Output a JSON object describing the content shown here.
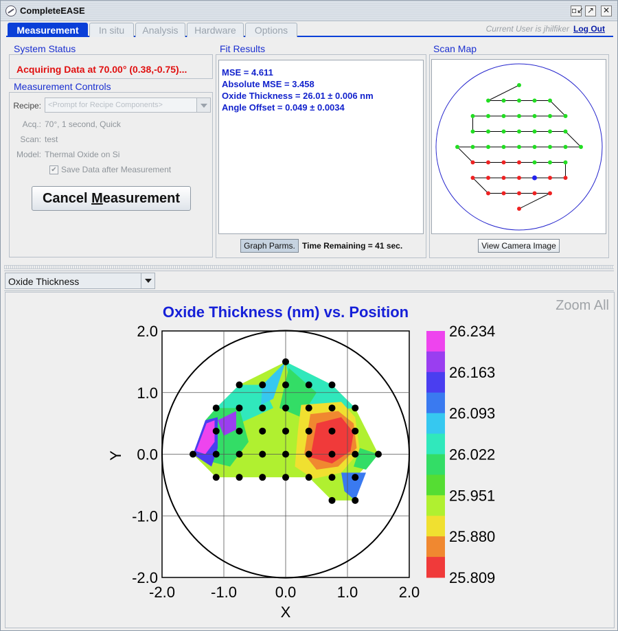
{
  "window": {
    "title": "CompleteEASE",
    "controls": [
      "▫↙",
      "↗",
      "✕"
    ]
  },
  "tabs": [
    {
      "label": "Measurement",
      "active": true
    },
    {
      "label": "In situ",
      "active": false
    },
    {
      "label": "Analysis",
      "active": false
    },
    {
      "label": "Hardware",
      "active": false
    },
    {
      "label": "Options",
      "active": false
    }
  ],
  "user": {
    "current": "Current User is jhilfiker",
    "logout": "Log Out"
  },
  "system_status": {
    "title": "System Status",
    "text": "Acquiring Data at 70.00° (0.38,-0.75)..."
  },
  "measurement_controls": {
    "title": "Measurement Controls",
    "recipe_label": "Recipe:",
    "recipe_value": "<Prompt for Recipe Components>",
    "acq_label": "Acq.:",
    "acq_value": "70°, 1 second, Quick",
    "scan_label": "Scan:",
    "scan_value": "test",
    "model_label": "Model:",
    "model_value": "Thermal Oxide on Si",
    "save_label": "Save Data after Measurement",
    "save_checked": true,
    "cancel_label_pre": "Cancel ",
    "cancel_label_mnemonic": "M",
    "cancel_label_post": "easurement"
  },
  "fit_results": {
    "title": "Fit Results",
    "lines": [
      "MSE = 4.611",
      "Absolute MSE = 3.458",
      "Oxide Thickness = 26.01 ± 0.006 nm",
      "Angle Offset = 0.049 ± 0.0034"
    ],
    "graph_parms": "Graph Parms.",
    "time_remaining": "Time Remaining = 41 sec."
  },
  "scan_map": {
    "title": "Scan Map",
    "camera_button": "View Camera Image"
  },
  "result_selector": {
    "value": "Oxide Thickness"
  },
  "zoom_all": "Zoom All",
  "chart_data": {
    "type": "heatmap",
    "title": "Oxide Thickness (nm) vs. Position",
    "xlabel": "X",
    "ylabel": "Y",
    "xlim": [
      -2.0,
      2.0
    ],
    "ylim": [
      -2.0,
      2.0
    ],
    "x_ticks": [
      "-2.0",
      "-1.0",
      "0.0",
      "1.0",
      "2.0"
    ],
    "y_ticks": [
      "2.0",
      "1.0",
      "0.0",
      "-1.0",
      "-2.0"
    ],
    "grid": true,
    "wafer_radius": 2.0,
    "colorbar": {
      "labels": [
        "26.234",
        "26.163",
        "26.093",
        "26.022",
        "25.951",
        "25.880",
        "25.809"
      ],
      "colors": [
        "#ee44ee",
        "#9a3ef0",
        "#4a3ef0",
        "#3a7af0",
        "#36c8f0",
        "#30e8bc",
        "#33dd66",
        "#55dd33",
        "#b0f030",
        "#f0e030",
        "#f08830",
        "#f03a3a"
      ]
    },
    "measurement_points": [
      [
        0.0,
        1.5
      ],
      [
        -1.5,
        0.0
      ],
      [
        -1.125,
        0.375
      ],
      [
        -0.75,
        0.75
      ],
      [
        -0.75,
        1.125
      ],
      [
        -0.375,
        1.125
      ],
      [
        0.0,
        1.125
      ],
      [
        0.375,
        1.125
      ],
      [
        0.75,
        1.125
      ],
      [
        -1.125,
        0.75
      ],
      [
        -0.375,
        0.75
      ],
      [
        0.0,
        0.75
      ],
      [
        0.375,
        0.75
      ],
      [
        0.75,
        0.75
      ],
      [
        1.125,
        0.75
      ],
      [
        -0.75,
        0.375
      ],
      [
        -0.375,
        0.375
      ],
      [
        0.0,
        0.375
      ],
      [
        0.375,
        0.375
      ],
      [
        0.75,
        0.375
      ],
      [
        1.125,
        0.375
      ],
      [
        -1.125,
        0.0
      ],
      [
        -0.75,
        0.0
      ],
      [
        -0.375,
        0.0
      ],
      [
        0.0,
        0.0
      ],
      [
        0.375,
        0.0
      ],
      [
        0.75,
        0.0
      ],
      [
        1.125,
        0.0
      ],
      [
        1.5,
        0.0
      ],
      [
        -1.125,
        -0.375
      ],
      [
        -0.75,
        -0.375
      ],
      [
        -0.375,
        -0.375
      ],
      [
        0.0,
        -0.375
      ],
      [
        0.375,
        -0.375
      ],
      [
        0.75,
        -0.375
      ],
      [
        1.125,
        -0.375
      ],
      [
        0.75,
        -0.75
      ],
      [
        1.125,
        -0.75
      ]
    ]
  }
}
